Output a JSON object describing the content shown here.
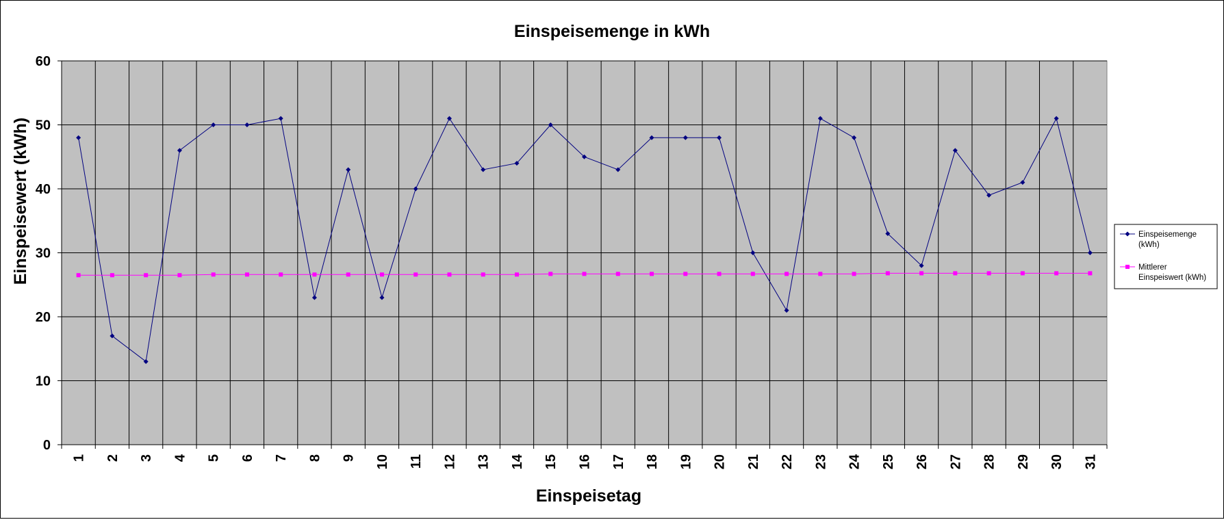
{
  "chart_data": {
    "type": "line",
    "title": "Einspeisemenge in kWh",
    "xlabel": "Einspeisetag",
    "ylabel": "Einspeisewert  (kWh)",
    "ylim": [
      0,
      60
    ],
    "yticks": [
      "0",
      "10",
      "20",
      "30",
      "40",
      "50",
      "60"
    ],
    "categories": [
      "1",
      "2",
      "3",
      "4",
      "5",
      "6",
      "7",
      "8",
      "9",
      "10",
      "11",
      "12",
      "13",
      "14",
      "15",
      "16",
      "17",
      "18",
      "19",
      "20",
      "21",
      "22",
      "23",
      "24",
      "25",
      "26",
      "27",
      "28",
      "29",
      "30",
      "31"
    ],
    "grid": true,
    "legend_position": "right",
    "plot_background": "#c0c0c0",
    "series": [
      {
        "name": "Einspeisemenge (kWh)",
        "legend_lines": [
          "Einspeisemenge",
          "(kWh)"
        ],
        "color": "#000080",
        "marker": "diamond",
        "values": [
          48,
          17,
          13,
          46,
          50,
          50,
          51,
          23,
          43,
          23,
          40,
          51,
          43,
          44,
          50,
          45,
          43,
          48,
          48,
          48,
          30,
          21,
          51,
          48,
          33,
          28,
          46,
          39,
          41,
          51,
          30
        ]
      },
      {
        "name": "Mittlerer Einspeiswert (kWh)",
        "legend_lines": [
          "Mittlerer",
          "Einspeiswert (kWh)"
        ],
        "color": "#ff00ff",
        "marker": "square",
        "values": [
          26.5,
          26.5,
          26.5,
          26.5,
          26.6,
          26.6,
          26.6,
          26.6,
          26.6,
          26.6,
          26.6,
          26.6,
          26.6,
          26.6,
          26.7,
          26.7,
          26.7,
          26.7,
          26.7,
          26.7,
          26.7,
          26.7,
          26.7,
          26.7,
          26.8,
          26.8,
          26.8,
          26.8,
          26.8,
          26.8,
          26.8
        ]
      }
    ]
  }
}
